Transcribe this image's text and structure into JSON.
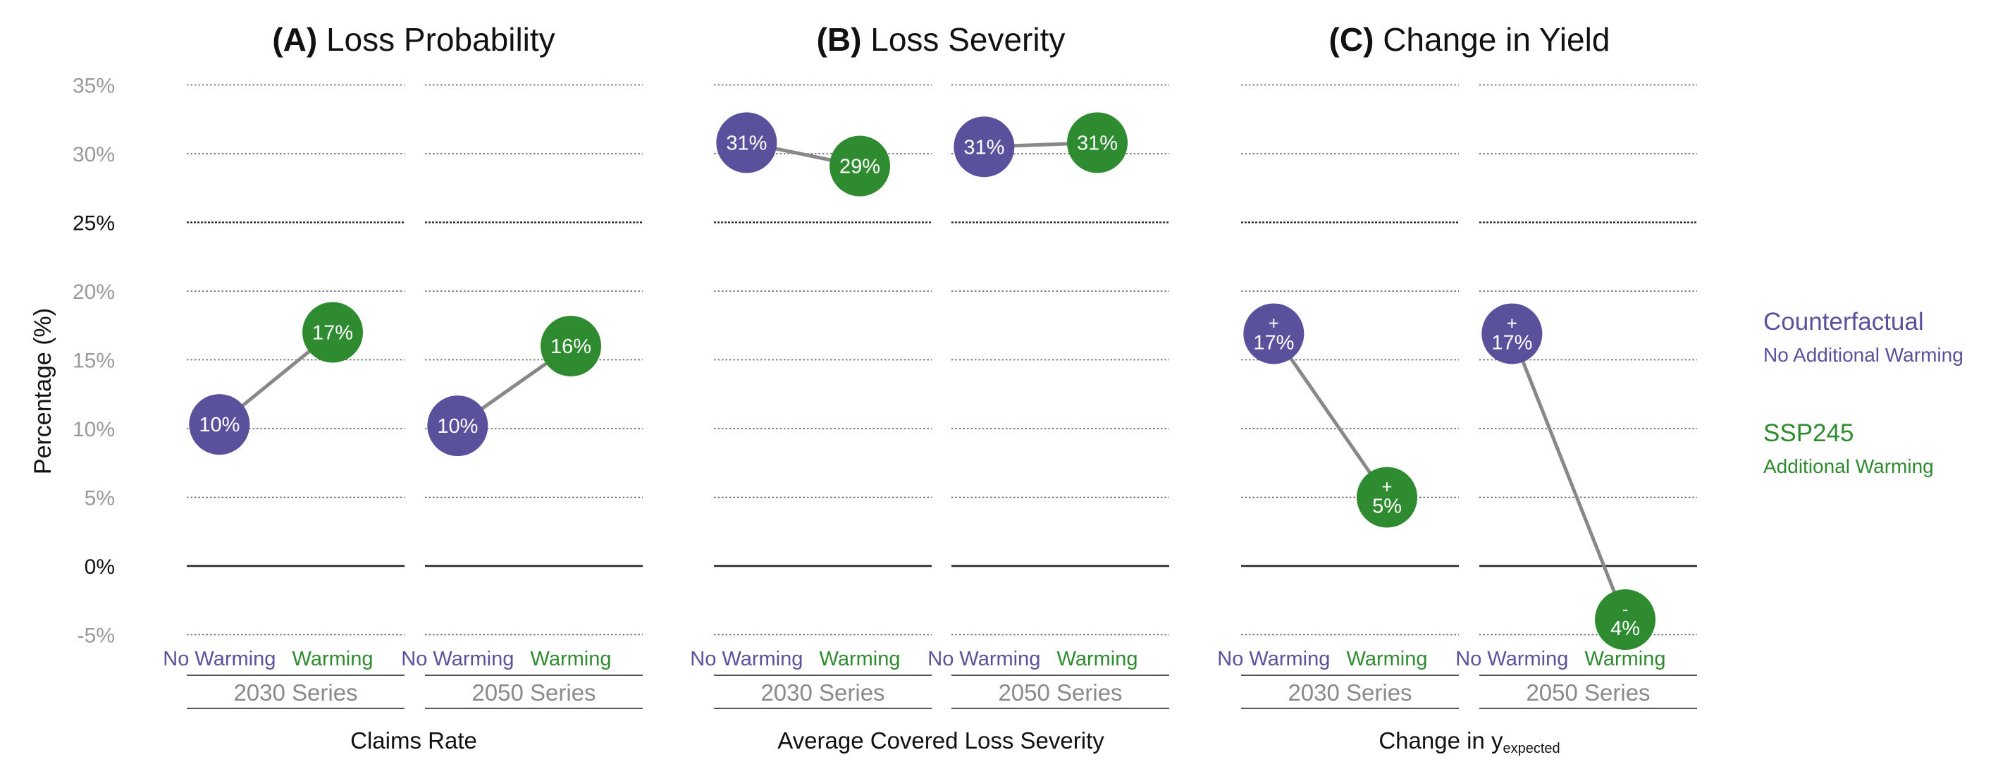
{
  "colors": {
    "counterfactual": "#5a519c",
    "warming": "#2f8b2f",
    "connector": "#888888",
    "grid": "#555555",
    "tick_text": "#999999",
    "series_label": "#8a8a8a",
    "axis_text": "#111111"
  },
  "ylabel": "Percentage (%)",
  "y_ticks": [
    "-5%",
    "0%",
    "5%",
    "10%",
    "15%",
    "20%",
    "25%",
    "30%",
    "35%"
  ],
  "legend": [
    {
      "title": "Counterfactual",
      "subtitle": "No Additional Warming",
      "color_key": "counterfactual"
    },
    {
      "title": "SSP245",
      "subtitle": "Additional Warming",
      "color_key": "warming"
    }
  ],
  "chart_data": [
    {
      "type": "scatter",
      "panel_letter": "(A)",
      "title": "Loss Probability",
      "xlabel": "Claims Rate",
      "xlabel_sub": "",
      "ylim": [
        -5,
        35
      ],
      "grid": true,
      "categories": [
        "No Warming",
        "Warming"
      ],
      "groups": [
        {
          "name": "2030 Series",
          "values": [
            10.3,
            17.0
          ],
          "labels": [
            {
              "sign": "",
              "text": "10%"
            },
            {
              "sign": "",
              "text": "17%"
            }
          ]
        },
        {
          "name": "2050 Series",
          "values": [
            10.2,
            16.0
          ],
          "labels": [
            {
              "sign": "",
              "text": "10%"
            },
            {
              "sign": "",
              "text": "16%"
            }
          ]
        }
      ]
    },
    {
      "type": "scatter",
      "panel_letter": "(B)",
      "title": "Loss Severity",
      "xlabel": "Average Covered Loss Severity",
      "xlabel_sub": "",
      "ylim": [
        -5,
        35
      ],
      "grid": true,
      "categories": [
        "No Warming",
        "Warming"
      ],
      "groups": [
        {
          "name": "2030 Series",
          "values": [
            30.8,
            29.1
          ],
          "labels": [
            {
              "sign": "",
              "text": "31%"
            },
            {
              "sign": "",
              "text": "29%"
            }
          ]
        },
        {
          "name": "2050 Series",
          "values": [
            30.5,
            30.8
          ],
          "labels": [
            {
              "sign": "",
              "text": "31%"
            },
            {
              "sign": "",
              "text": "31%"
            }
          ]
        }
      ]
    },
    {
      "type": "scatter",
      "panel_letter": "(C)",
      "title": "Change in Yield",
      "xlabel": "Change in y",
      "xlabel_sub": "expected",
      "ylim": [
        -5,
        35
      ],
      "grid": true,
      "categories": [
        "No Warming",
        "Warming"
      ],
      "groups": [
        {
          "name": "2030 Series",
          "values": [
            16.9,
            5.0
          ],
          "labels": [
            {
              "sign": "+",
              "text": "17%"
            },
            {
              "sign": "+",
              "text": "5%"
            }
          ]
        },
        {
          "name": "2050 Series",
          "values": [
            16.9,
            -3.9
          ],
          "labels": [
            {
              "sign": "+",
              "text": "17%"
            },
            {
              "sign": "-",
              "text": "4%"
            }
          ]
        }
      ]
    }
  ]
}
